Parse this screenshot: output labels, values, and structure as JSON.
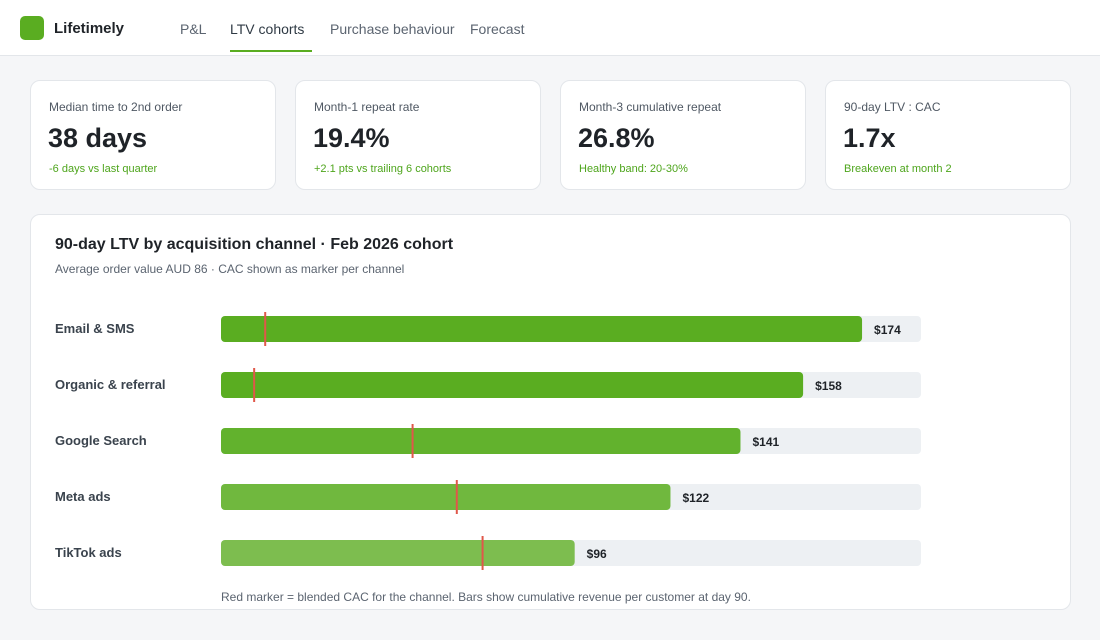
{
  "app": {
    "brand": "Lifetimely"
  },
  "nav": {
    "tabs": [
      {
        "label": "P&L",
        "active": false
      },
      {
        "label": "LTV cohorts",
        "active": true
      },
      {
        "label": "Purchase behaviour",
        "active": false
      },
      {
        "label": "Forecast",
        "active": false
      }
    ]
  },
  "kpis": [
    {
      "label": "Median time to 2nd order",
      "value": "38 days",
      "delta": "-6 days vs last quarter"
    },
    {
      "label": "Month-1 repeat rate",
      "value": "19.4%",
      "delta": "+2.1 pts vs trailing 6 cohorts"
    },
    {
      "label": "Month-3 cumulative repeat",
      "value": "26.8%",
      "delta": "Healthy band: 20-30%"
    },
    {
      "label": "90-day LTV : CAC",
      "value": "1.7x",
      "delta": "Breakeven at month 2"
    }
  ],
  "chart": {
    "title": "90-day LTV by acquisition channel · Feb 2026 cohort",
    "subtitle": "Average order value AUD 86 · CAC shown as marker per channel",
    "note": "Red marker = blended CAC for the channel. Bars show cumulative revenue per customer at day 90."
  },
  "colors": {
    "accent": "#5aad21",
    "marker": "#e0574a",
    "track": "#edf0f3",
    "positive": "#4ea51c"
  },
  "chart_data": {
    "type": "bar",
    "orientation": "horizontal",
    "categories": [
      "Email & SMS",
      "Organic & referral",
      "Google Search",
      "Meta ads",
      "TikTok ads"
    ],
    "series": [
      {
        "values": [
          174,
          158,
          141,
          122,
          96
        ]
      },
      {
        "values": [
          12,
          9,
          52,
          64,
          71
        ]
      }
    ],
    "value_labels": [
      "$174",
      "$158",
      "$141",
      "$122",
      "$96"
    ],
    "bar_colors": [
      "#5aad21",
      "#5aad21",
      "#62b22d",
      "#70b83e",
      "#7dbd4f"
    ],
    "xlim": [
      0,
      190
    ],
    "grid": false,
    "legend": "none"
  }
}
